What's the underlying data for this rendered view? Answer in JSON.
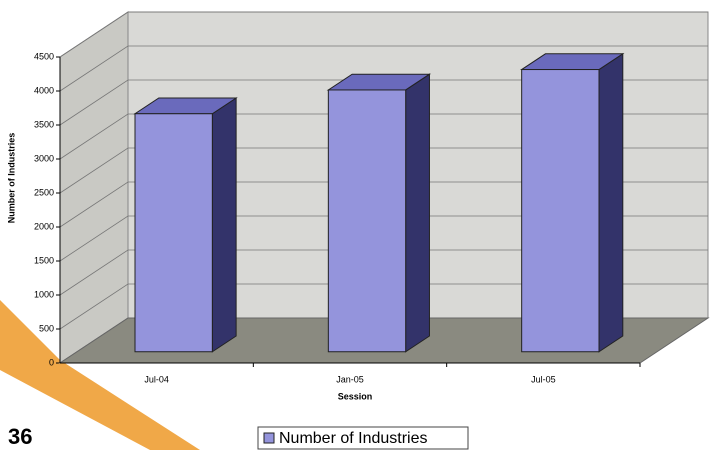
{
  "page_number": "36",
  "chart_data": {
    "type": "bar3d",
    "y_label": "Number of Industries",
    "x_label": "Session",
    "categories": [
      "Jul-04",
      "Jan-05",
      "Jul-05"
    ],
    "series": [
      {
        "name": "Number of Industries",
        "color": "#9494dc",
        "values": [
          3500,
          3850,
          4150
        ]
      }
    ],
    "ylim": [
      0,
      4500
    ],
    "yticks": [
      0,
      500,
      1000,
      1500,
      2000,
      2500,
      3000,
      3500,
      4000,
      4500
    ],
    "grid": true,
    "legend": "bottom"
  }
}
